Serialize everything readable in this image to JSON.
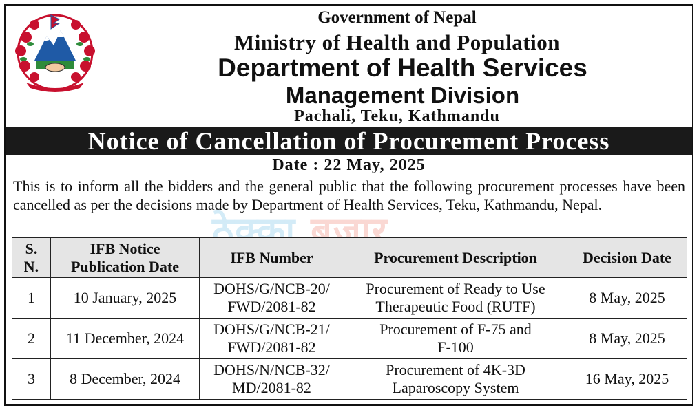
{
  "header": {
    "line1": "Government of Nepal",
    "line2": "Ministry of Health and Population",
    "line3": "Department of Health Services",
    "line4": "Management Division",
    "line5": "Pachali, Teku, Kathmandu"
  },
  "emblem": {
    "icon": "nepal-emblem-icon"
  },
  "notice_title": "Notice of Cancellation of Procurement Process",
  "date_line": "Date : 22 May, 2025",
  "intro": "This is to inform all the bidders and the general public that the following procurement processes have been cancelled as per the decisions made by Department of Health Services, Teku, Kathmandu, Nepal.",
  "watermark": {
    "part1": "ठेक्का",
    "part2": " बजार"
  },
  "table": {
    "headers": {
      "sn_line1": "S.",
      "sn_line2": "N.",
      "pub_line1": "IFB Notice",
      "pub_line2": "Publication Date",
      "ifb": "IFB Number",
      "desc": "Procurement Description",
      "decision": "Decision Date"
    },
    "rows": [
      {
        "sn": "1",
        "pub": "10 January, 2025",
        "ifb1": "DOHS/G/NCB-20/",
        "ifb2": "FWD/2081-82",
        "desc1": "Procurement of Ready to Use",
        "desc2": "Therapeutic Food (RUTF)",
        "decision": "8 May, 2025"
      },
      {
        "sn": "2",
        "pub": "11 December, 2024",
        "ifb1": "DOHS/G/NCB-21/",
        "ifb2": "FWD/2081-82",
        "desc1": "Procurement of F-75 and",
        "desc2": "F-100",
        "decision": "8 May, 2025"
      },
      {
        "sn": "3",
        "pub": "8 December, 2024",
        "ifb1": "DOHS/N/NCB-32/",
        "ifb2": "MD/2081-82",
        "desc1": "Procurement of 4K-3D",
        "desc2": "Laparoscopy System",
        "decision": "16 May, 2025"
      }
    ]
  },
  "colors": {
    "red": "#c8102e",
    "blue": "#1f5aa6",
    "green": "#2e8b3a",
    "bar": "#1a1a1a"
  }
}
